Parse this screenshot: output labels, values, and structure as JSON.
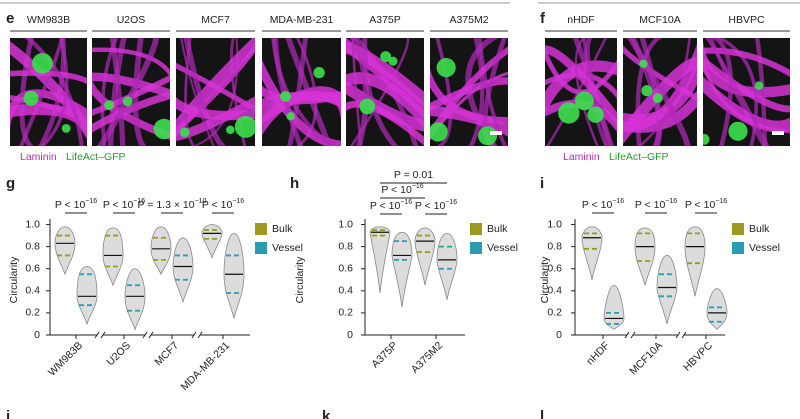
{
  "panels": [
    {
      "label": "e",
      "images": [
        "WM983B",
        "U2OS",
        "MCF7",
        "MDA-MB-231",
        "A375P",
        "A375M2"
      ],
      "stain": "Laminin",
      "gfp": "LifeAct–GFP"
    },
    {
      "label": "f",
      "images": [
        "nHDF",
        "MCF10A",
        "HBVPC"
      ],
      "stain": "Laminin",
      "gfp": "LifeAct–GFP"
    }
  ],
  "chart_data": [
    {
      "type": "violin",
      "panel_label": "g",
      "y_label": "Circularity",
      "categories": [
        "WM983B",
        "U2OS",
        "MCF7",
        "MDA-MB-231"
      ],
      "series": [
        {
          "name": "Bulk",
          "color": "#9b9a1f",
          "values": [
            0.83,
            0.72,
            0.78,
            0.92
          ],
          "q1": [
            0.72,
            0.62,
            0.68,
            0.87
          ],
          "q3": [
            0.9,
            0.9,
            0.88,
            0.95
          ],
          "min": [
            0.55,
            0.45,
            0.55,
            0.7
          ],
          "max": [
            0.98,
            0.97,
            0.98,
            1.0
          ]
        },
        {
          "name": "Vessel",
          "color": "#2a9db5",
          "values": [
            0.35,
            0.35,
            0.62,
            0.55
          ],
          "q1": [
            0.27,
            0.22,
            0.5,
            0.38
          ],
          "q3": [
            0.55,
            0.45,
            0.72,
            0.72
          ],
          "min": [
            0.1,
            0.05,
            0.3,
            0.15
          ],
          "max": [
            0.62,
            0.6,
            0.88,
            0.92
          ]
        }
      ],
      "ylim": [
        0,
        1.05
      ],
      "yticks": [
        0,
        0.2,
        0.4,
        0.6,
        0.8,
        {
          "value": 1,
          "label": "1.0"
        }
      ],
      "annotations": [
        {
          "text": "P < 10",
          "exp": "−16"
        },
        {
          "text": "P < 10",
          "exp": "−16"
        },
        {
          "text": "P = 1.3 × 10",
          "exp": "−10"
        },
        {
          "text": "P < 10",
          "exp": "−16"
        }
      ]
    },
    {
      "type": "violin",
      "panel_label": "h",
      "y_label": "Circularity",
      "categories": [
        "A375P",
        "A375M2"
      ],
      "series": [
        {
          "name": "Bulk",
          "color": "#9b9a1f",
          "values": [
            0.93,
            0.85
          ],
          "q1": [
            0.9,
            0.75
          ],
          "q3": [
            0.95,
            0.9
          ],
          "min": [
            0.38,
            0.45
          ],
          "max": [
            0.98,
            0.97
          ]
        },
        {
          "name": "Vessel",
          "color": "#2a9db5",
          "values": [
            0.72,
            0.68
          ],
          "q1": [
            0.68,
            0.6
          ],
          "q3": [
            0.85,
            0.8
          ],
          "min": [
            0.25,
            0.32
          ],
          "max": [
            0.93,
            0.92
          ]
        }
      ],
      "ylim": [
        0,
        1.05
      ],
      "yticks": [
        0,
        0.2,
        0.4,
        0.6,
        0.8,
        {
          "value": 1,
          "label": "1.0"
        }
      ],
      "annotations": [
        {
          "text": "P = 0.01"
        },
        {
          "text": "P < 10",
          "exp": "−16"
        },
        {
          "text": "P < 10",
          "exp": "−16"
        },
        {
          "text": "P < 10",
          "exp": "−16"
        }
      ]
    },
    {
      "type": "violin",
      "panel_label": "i",
      "y_label": "Circularity",
      "categories": [
        "nHDF",
        "MCF10A",
        "HBVPC"
      ],
      "series": [
        {
          "name": "Bulk",
          "color": "#9b9a1f",
          "values": [
            0.88,
            0.8,
            0.8
          ],
          "q1": [
            0.78,
            0.67,
            0.65
          ],
          "q3": [
            0.92,
            0.92,
            0.92
          ],
          "min": [
            0.5,
            0.45,
            0.35
          ],
          "max": [
            0.98,
            0.97,
            0.98
          ]
        },
        {
          "name": "Vessel",
          "color": "#2a9db5",
          "values": [
            0.15,
            0.43,
            0.2
          ],
          "q1": [
            0.1,
            0.35,
            0.12
          ],
          "q3": [
            0.2,
            0.55,
            0.25
          ],
          "min": [
            0.05,
            0.1,
            0.05
          ],
          "max": [
            0.45,
            0.72,
            0.42
          ]
        }
      ],
      "ylim": [
        0,
        1.05
      ],
      "yticks": [
        0,
        0.2,
        0.4,
        0.6,
        0.8,
        {
          "value": 1,
          "label": "1.0"
        }
      ],
      "annotations": [
        {
          "text": "P < 10",
          "exp": "−16"
        },
        {
          "text": "P < 10",
          "exp": "−16"
        },
        {
          "text": "P < 10",
          "exp": "−16"
        }
      ]
    }
  ],
  "bottom_labels": [
    "j",
    "k",
    "l"
  ]
}
